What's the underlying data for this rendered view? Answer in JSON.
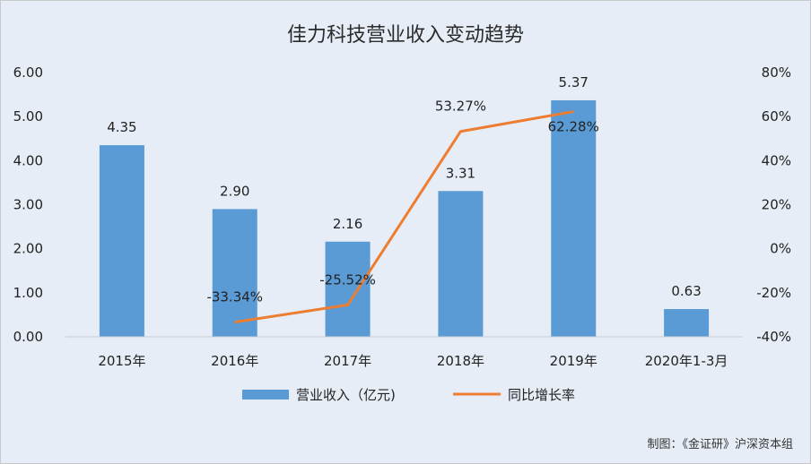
{
  "chart_data": {
    "type": "bar",
    "title": "佳力科技营业收入变动趋势",
    "categories": [
      "2015年",
      "2016年",
      "2017年",
      "2018年",
      "2019年",
      "2020年1-3月"
    ],
    "series": [
      {
        "name": "营业收入（亿元)",
        "type": "bar",
        "axis": "left",
        "values": [
          4.35,
          2.9,
          2.16,
          3.31,
          5.37,
          0.63
        ],
        "labels": [
          "4.35",
          "2.90",
          "2.16",
          "3.31",
          "5.37",
          "0.63"
        ]
      },
      {
        "name": "同比增长率",
        "type": "line",
        "axis": "right",
        "values": [
          null,
          -33.34,
          -25.52,
          53.27,
          62.28,
          null
        ],
        "labels": [
          "",
          "-33.34%",
          "-25.52%",
          "53.27%",
          "62.28%",
          ""
        ]
      }
    ],
    "y_left": {
      "min": 0,
      "max": 6,
      "ticks": [
        "0.00",
        "1.00",
        "2.00",
        "3.00",
        "4.00",
        "5.00",
        "6.00"
      ]
    },
    "y_right": {
      "min": -40,
      "max": 80,
      "ticks": [
        "-40%",
        "-20%",
        "0%",
        "20%",
        "40%",
        "60%",
        "80%"
      ]
    },
    "grid": false,
    "legend_position": "bottom",
    "colors": {
      "bar": "#5b9bd5",
      "line": "#ed7d31",
      "background": "#e6edf6"
    }
  },
  "credit": "制图：《金证研》沪深资本组"
}
